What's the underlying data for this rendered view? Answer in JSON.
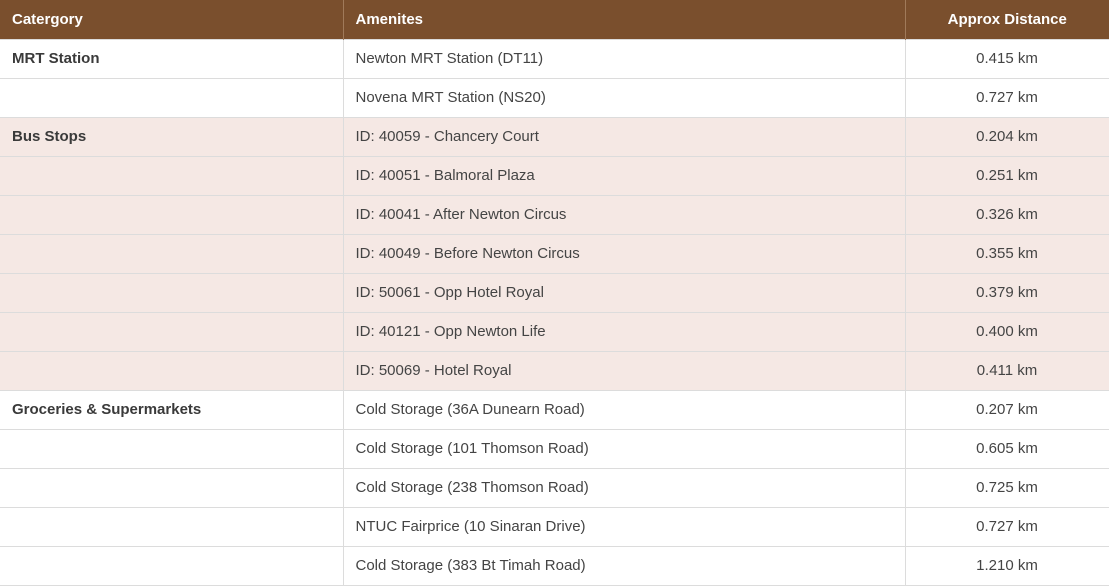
{
  "headers": {
    "category": "Catergory",
    "amenities": "Amenites",
    "distance": "Approx Distance"
  },
  "rows": [
    {
      "category": "MRT Station",
      "amenity": "Newton MRT Station (DT11)",
      "distance": "0.415 km"
    },
    {
      "category": "",
      "amenity": "Novena MRT Station (NS20)",
      "distance": "0.727 km"
    },
    {
      "category": "Bus Stops",
      "amenity": "ID: 40059 - Chancery Court",
      "distance": "0.204 km"
    },
    {
      "category": "",
      "amenity": "ID: 40051 - Balmoral Plaza",
      "distance": "0.251 km"
    },
    {
      "category": "",
      "amenity": "ID: 40041 - After Newton Circus",
      "distance": "0.326 km"
    },
    {
      "category": "",
      "amenity": "ID: 40049 - Before Newton Circus",
      "distance": "0.355 km"
    },
    {
      "category": "",
      "amenity": "ID: 50061 - Opp Hotel Royal",
      "distance": "0.379 km"
    },
    {
      "category": "",
      "amenity": "ID: 40121 - Opp Newton Life",
      "distance": "0.400 km"
    },
    {
      "category": "",
      "amenity": "ID: 50069 - Hotel Royal",
      "distance": "0.411 km"
    },
    {
      "category": "Groceries & Supermarkets",
      "amenity": "Cold Storage (36A Dunearn Road)",
      "distance": "0.207 km"
    },
    {
      "category": "",
      "amenity": "Cold Storage (101 Thomson Road)",
      "distance": "0.605 km"
    },
    {
      "category": "",
      "amenity": "Cold Storage (238 Thomson Road)",
      "distance": "0.725 km"
    },
    {
      "category": "",
      "amenity": "NTUC Fairprice (10 Sinaran Drive)",
      "distance": "0.727 km"
    },
    {
      "category": "",
      "amenity": "Cold Storage (383 Bt Timah Road)",
      "distance": "1.210 km"
    }
  ],
  "colors": {
    "header_bg": "#7a4f2d",
    "shaded_row_bg": "#f5e8e4"
  }
}
